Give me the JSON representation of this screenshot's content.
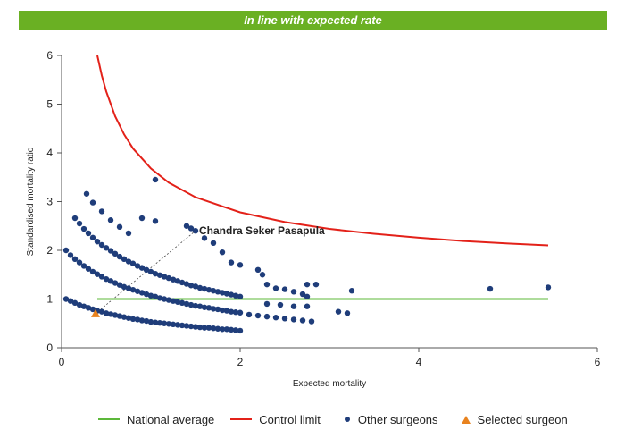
{
  "banner": {
    "title": "In line with expected rate",
    "color": "#6ab023"
  },
  "chart_data": {
    "type": "scatter",
    "xlabel": "Expected mortality",
    "ylabel": "Standardised mortality ratio",
    "xlim": [
      0,
      6
    ],
    "ylim": [
      0,
      6
    ],
    "xticks": [
      "0",
      "2",
      "4",
      "6"
    ],
    "yticks": [
      "0",
      "1",
      "2",
      "3",
      "4",
      "5",
      "6"
    ],
    "grid": false,
    "legend_position": "bottom",
    "annotation": {
      "text": "Chandra Seker Pasapula",
      "x": 1.5,
      "y": 2.4
    },
    "series": [
      {
        "name": "National average",
        "type": "line",
        "color": "#5cb83a",
        "x": [
          0.4,
          5.45
        ],
        "y": [
          1,
          1
        ]
      },
      {
        "name": "Control limit",
        "type": "line",
        "color": "#e32119",
        "x": [
          0.4,
          0.45,
          0.5,
          0.6,
          0.7,
          0.8,
          1.0,
          1.2,
          1.5,
          2.0,
          2.5,
          3.0,
          3.5,
          4.0,
          4.5,
          5.0,
          5.45
        ],
        "y": [
          6.0,
          5.59,
          5.26,
          4.75,
          4.38,
          4.09,
          3.68,
          3.39,
          3.09,
          2.78,
          2.58,
          2.44,
          2.34,
          2.26,
          2.19,
          2.14,
          2.1
        ]
      },
      {
        "name": "Other surgeons",
        "type": "scatter",
        "color": "#1f3d7a",
        "x": [
          0.05,
          0.1,
          0.15,
          0.2,
          0.25,
          0.3,
          0.35,
          0.4,
          0.45,
          0.5,
          0.55,
          0.6,
          0.65,
          0.7,
          0.75,
          0.8,
          0.85,
          0.9,
          0.95,
          1.0,
          1.05,
          1.1,
          1.15,
          1.2,
          1.25,
          1.3,
          1.35,
          1.4,
          1.45,
          1.5,
          1.55,
          1.6,
          1.65,
          1.7,
          1.75,
          1.8,
          1.85,
          1.9,
          1.95,
          2.0,
          0.05,
          0.1,
          0.15,
          0.2,
          0.25,
          0.3,
          0.35,
          0.4,
          0.45,
          0.5,
          0.55,
          0.6,
          0.65,
          0.7,
          0.75,
          0.8,
          0.85,
          0.9,
          0.95,
          1.0,
          1.05,
          1.1,
          1.15,
          1.2,
          1.25,
          1.3,
          1.35,
          1.4,
          1.45,
          1.5,
          1.55,
          1.6,
          1.65,
          1.7,
          1.75,
          1.8,
          1.85,
          1.9,
          1.95,
          2.0,
          2.1,
          2.2,
          2.3,
          2.4,
          2.5,
          2.6,
          2.7,
          2.8,
          0.15,
          0.2,
          0.25,
          0.3,
          0.35,
          0.4,
          0.45,
          0.5,
          0.55,
          0.6,
          0.65,
          0.7,
          0.75,
          0.8,
          0.85,
          0.9,
          0.95,
          1.0,
          1.05,
          1.1,
          1.15,
          1.2,
          1.25,
          1.3,
          1.35,
          1.4,
          1.45,
          1.5,
          1.55,
          1.6,
          1.65,
          1.7,
          1.75,
          1.8,
          1.85,
          1.9,
          1.95,
          2.0,
          0.28,
          0.35,
          0.45,
          0.55,
          0.65,
          0.75,
          0.9,
          1.05,
          1.4,
          1.45,
          1.5,
          1.6,
          1.7,
          1.8,
          1.9,
          2.0,
          2.2,
          2.25,
          2.3,
          2.4,
          2.5,
          2.6,
          2.7,
          2.75,
          2.85,
          3.1,
          3.2,
          3.25,
          4.8,
          5.45,
          2.6,
          2.75,
          1.05,
          2.3,
          2.45,
          2.75
        ],
        "y": [
          1.0,
          0.96,
          0.92,
          0.88,
          0.85,
          0.82,
          0.79,
          0.76,
          0.74,
          0.71,
          0.69,
          0.67,
          0.65,
          0.63,
          0.61,
          0.59,
          0.58,
          0.56,
          0.55,
          0.53,
          0.52,
          0.51,
          0.5,
          0.49,
          0.48,
          0.47,
          0.46,
          0.45,
          0.44,
          0.43,
          0.42,
          0.41,
          0.41,
          0.4,
          0.39,
          0.38,
          0.38,
          0.37,
          0.36,
          0.35,
          2.0,
          1.9,
          1.82,
          1.75,
          1.68,
          1.62,
          1.56,
          1.51,
          1.46,
          1.41,
          1.37,
          1.33,
          1.29,
          1.25,
          1.22,
          1.19,
          1.16,
          1.13,
          1.1,
          1.07,
          1.05,
          1.02,
          1.0,
          0.98,
          0.96,
          0.94,
          0.92,
          0.9,
          0.88,
          0.86,
          0.85,
          0.83,
          0.82,
          0.8,
          0.79,
          0.77,
          0.76,
          0.74,
          0.73,
          0.72,
          0.68,
          0.66,
          0.64,
          0.62,
          0.6,
          0.58,
          0.56,
          0.54,
          2.66,
          2.55,
          2.44,
          2.35,
          2.26,
          2.18,
          2.11,
          2.05,
          1.99,
          1.93,
          1.87,
          1.82,
          1.77,
          1.73,
          1.68,
          1.64,
          1.6,
          1.56,
          1.52,
          1.49,
          1.46,
          1.43,
          1.4,
          1.37,
          1.34,
          1.31,
          1.28,
          1.26,
          1.23,
          1.21,
          1.19,
          1.17,
          1.15,
          1.13,
          1.11,
          1.09,
          1.07,
          1.05,
          3.16,
          2.98,
          2.8,
          2.62,
          2.48,
          2.35,
          2.66,
          2.6,
          2.5,
          2.45,
          2.4,
          2.25,
          2.15,
          1.96,
          1.75,
          1.7,
          1.6,
          1.5,
          1.3,
          1.22,
          1.2,
          1.15,
          1.1,
          1.05,
          1.3,
          0.74,
          0.71,
          1.17,
          1.21,
          1.24,
          0.85,
          0.85,
          3.45,
          0.9,
          0.88,
          1.3
        ]
      },
      {
        "name": "Selected surgeon",
        "type": "scatter",
        "marker": "triangle",
        "color": "#e8821e",
        "x": [
          0.38
        ],
        "y": [
          0.7
        ]
      }
    ]
  },
  "legend": {
    "items": [
      {
        "label": "National average",
        "color": "#5cb83a"
      },
      {
        "label": "Control limit",
        "color": "#e32119"
      },
      {
        "label": "Other surgeons",
        "color": "#1f3d7a"
      },
      {
        "label": "Selected surgeon",
        "color": "#e8821e"
      }
    ]
  }
}
